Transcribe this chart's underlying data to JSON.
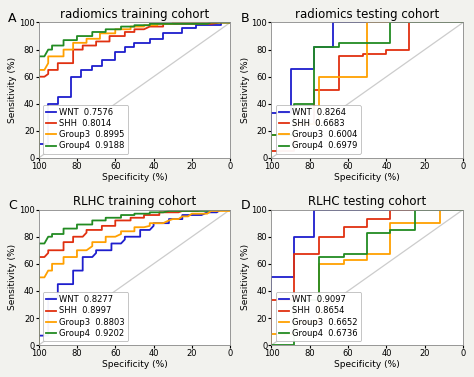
{
  "panels": [
    {
      "label": "A",
      "title": "radiomics training cohort",
      "curves": {
        "WNT": {
          "color": "#1E1ECD",
          "auc": "0.7576",
          "x": [
            100,
            100,
            97,
            95,
            95,
            90,
            90,
            85,
            83,
            83,
            78,
            78,
            72,
            72,
            67,
            67,
            63,
            60,
            60,
            55,
            55,
            50,
            50,
            45,
            42,
            42,
            37,
            35,
            35,
            28,
            25,
            25,
            20,
            18,
            18,
            12,
            10,
            5,
            5,
            2,
            0
          ],
          "y": [
            0,
            10,
            10,
            10,
            40,
            40,
            45,
            45,
            45,
            60,
            60,
            65,
            65,
            68,
            68,
            72,
            72,
            72,
            78,
            78,
            82,
            82,
            85,
            85,
            85,
            88,
            88,
            88,
            92,
            92,
            92,
            96,
            96,
            96,
            98,
            98,
            98,
            98,
            100,
            100,
            100
          ]
        },
        "SHH": {
          "color": "#E03010",
          "auc": "0.8014",
          "x": [
            100,
            100,
            97,
            95,
            95,
            90,
            90,
            85,
            82,
            82,
            77,
            77,
            72,
            70,
            70,
            65,
            63,
            63,
            58,
            55,
            55,
            50,
            50,
            45,
            42,
            42,
            37,
            35,
            35,
            28,
            25,
            25,
            20,
            15,
            12,
            10,
            5,
            2,
            2,
            0
          ],
          "y": [
            0,
            60,
            60,
            62,
            65,
            65,
            70,
            70,
            70,
            80,
            80,
            83,
            83,
            83,
            86,
            86,
            86,
            90,
            90,
            90,
            93,
            93,
            95,
            95,
            97,
            97,
            97,
            97,
            99,
            99,
            99,
            99,
            99,
            99,
            99,
            99,
            100,
            100,
            100,
            100
          ]
        },
        "Group3": {
          "color": "#FFA000",
          "auc": "0.8995",
          "x": [
            100,
            100,
            97,
            95,
            95,
            90,
            87,
            87,
            82,
            82,
            77,
            75,
            75,
            70,
            68,
            68,
            63,
            60,
            60,
            55,
            52,
            52,
            47,
            45,
            45,
            40,
            38,
            38,
            32,
            30,
            30,
            25,
            22,
            20,
            18,
            15,
            12,
            10,
            7,
            5,
            3,
            0
          ],
          "y": [
            0,
            65,
            65,
            70,
            75,
            75,
            75,
            80,
            80,
            85,
            85,
            85,
            88,
            88,
            88,
            92,
            92,
            92,
            95,
            95,
            95,
            97,
            97,
            97,
            98,
            98,
            98,
            99,
            99,
            99,
            100,
            100,
            100,
            100,
            100,
            100,
            100,
            100,
            100,
            100,
            100,
            100
          ]
        },
        "Group4": {
          "color": "#228B22",
          "auc": "0.9188",
          "x": [
            100,
            100,
            97,
            95,
            93,
            93,
            88,
            87,
            87,
            82,
            80,
            80,
            75,
            72,
            72,
            67,
            65,
            65,
            60,
            57,
            57,
            52,
            50,
            50,
            45,
            42,
            42,
            37,
            35,
            32,
            30,
            27,
            25,
            22,
            20,
            17,
            15,
            12,
            10,
            7,
            5,
            3,
            0
          ],
          "y": [
            0,
            75,
            75,
            80,
            80,
            83,
            83,
            83,
            87,
            87,
            87,
            90,
            90,
            90,
            93,
            93,
            93,
            95,
            95,
            95,
            97,
            97,
            97,
            98,
            98,
            98,
            99,
            99,
            99,
            99,
            99,
            99,
            99,
            99,
            99,
            99,
            99,
            99,
            100,
            100,
            100,
            100,
            100
          ]
        }
      }
    },
    {
      "label": "B",
      "title": "radiomics testing cohort",
      "curves": {
        "WNT": {
          "color": "#1E1ECD",
          "auc": "0.8264",
          "x": [
            100,
            100,
            90,
            90,
            78,
            78,
            68,
            68,
            42,
            42,
            20,
            20,
            0
          ],
          "y": [
            0,
            33,
            33,
            66,
            66,
            82,
            82,
            100,
            100,
            100,
            100,
            100,
            100
          ]
        },
        "SHH": {
          "color": "#E03010",
          "auc": "0.6683",
          "x": [
            100,
            100,
            88,
            88,
            78,
            78,
            65,
            65,
            52,
            52,
            40,
            40,
            28,
            28,
            0
          ],
          "y": [
            0,
            5,
            5,
            25,
            25,
            50,
            50,
            75,
            75,
            77,
            77,
            80,
            80,
            100,
            100
          ]
        },
        "Group3": {
          "color": "#FFA000",
          "auc": "0.6004",
          "x": [
            100,
            100,
            88,
            88,
            75,
            75,
            62,
            62,
            50,
            50,
            38,
            38,
            0
          ],
          "y": [
            0,
            17,
            17,
            25,
            25,
            60,
            60,
            60,
            60,
            100,
            100,
            100,
            100
          ]
        },
        "Group4": {
          "color": "#228B22",
          "auc": "0.6979",
          "x": [
            100,
            100,
            88,
            88,
            78,
            78,
            65,
            65,
            52,
            52,
            38,
            38,
            25,
            25,
            0
          ],
          "y": [
            0,
            17,
            17,
            40,
            40,
            82,
            82,
            85,
            85,
            85,
            85,
            100,
            100,
            100,
            100
          ]
        }
      }
    },
    {
      "label": "C",
      "title": "RLHC training cohort",
      "curves": {
        "WNT": {
          "color": "#1E1ECD",
          "auc": "0.8277",
          "x": [
            100,
            100,
            97,
            95,
            95,
            90,
            90,
            85,
            82,
            82,
            77,
            77,
            72,
            70,
            70,
            65,
            62,
            62,
            57,
            55,
            55,
            50,
            47,
            47,
            42,
            40,
            40,
            35,
            32,
            32,
            27,
            25,
            25,
            20,
            17,
            15,
            12,
            10,
            7,
            5,
            3,
            0
          ],
          "y": [
            0,
            7,
            7,
            7,
            35,
            35,
            45,
            45,
            45,
            55,
            55,
            65,
            65,
            68,
            70,
            70,
            70,
            75,
            75,
            78,
            80,
            80,
            80,
            85,
            85,
            88,
            90,
            90,
            90,
            93,
            93,
            93,
            96,
            96,
            96,
            96,
            98,
            98,
            98,
            100,
            100,
            100
          ]
        },
        "SHH": {
          "color": "#E03010",
          "auc": "0.8997",
          "x": [
            100,
            100,
            97,
            95,
            95,
            90,
            87,
            87,
            82,
            82,
            77,
            75,
            75,
            70,
            67,
            67,
            62,
            60,
            60,
            55,
            52,
            52,
            47,
            45,
            45,
            40,
            37,
            37,
            32,
            30,
            27,
            25,
            22,
            20,
            17,
            15,
            12,
            10,
            7,
            5,
            3,
            0
          ],
          "y": [
            0,
            65,
            65,
            68,
            70,
            70,
            70,
            76,
            76,
            80,
            80,
            83,
            85,
            85,
            85,
            88,
            88,
            88,
            92,
            92,
            92,
            94,
            94,
            94,
            96,
            96,
            96,
            98,
            98,
            98,
            98,
            99,
            99,
            99,
            99,
            100,
            100,
            100,
            100,
            100,
            100,
            100
          ]
        },
        "Group3": {
          "color": "#FFA000",
          "auc": "0.8803",
          "x": [
            100,
            100,
            97,
            95,
            93,
            93,
            88,
            87,
            87,
            82,
            80,
            80,
            75,
            72,
            72,
            67,
            65,
            65,
            60,
            57,
            57,
            52,
            50,
            50,
            45,
            42,
            42,
            37,
            35,
            32,
            30,
            27,
            25,
            22,
            20,
            17,
            15,
            12,
            10,
            7,
            5,
            3,
            0
          ],
          "y": [
            0,
            50,
            50,
            55,
            55,
            60,
            60,
            60,
            65,
            65,
            65,
            70,
            70,
            73,
            76,
            76,
            76,
            80,
            80,
            82,
            84,
            84,
            84,
            87,
            87,
            88,
            90,
            90,
            90,
            92,
            93,
            93,
            95,
            95,
            97,
            97,
            97,
            97,
            99,
            99,
            99,
            99,
            99
          ]
        },
        "Group4": {
          "color": "#228B22",
          "auc": "0.9202",
          "x": [
            100,
            100,
            97,
            95,
            93,
            93,
            88,
            87,
            87,
            82,
            80,
            80,
            75,
            72,
            72,
            67,
            65,
            65,
            60,
            57,
            57,
            52,
            50,
            50,
            45,
            42,
            42,
            37,
            35,
            32,
            30,
            27,
            25,
            22,
            20,
            17,
            15,
            12,
            10,
            7,
            5,
            3,
            0
          ],
          "y": [
            0,
            75,
            75,
            80,
            80,
            82,
            82,
            82,
            86,
            86,
            86,
            89,
            89,
            89,
            92,
            92,
            92,
            94,
            94,
            94,
            96,
            96,
            96,
            97,
            97,
            97,
            98,
            98,
            98,
            99,
            99,
            99,
            99,
            99,
            99,
            99,
            99,
            99,
            100,
            100,
            100,
            100,
            100
          ]
        }
      }
    },
    {
      "label": "D",
      "title": "RLHC testing cohort",
      "curves": {
        "WNT": {
          "color": "#1E1ECD",
          "auc": "0.9097",
          "x": [
            100,
            100,
            88,
            88,
            78,
            78,
            65,
            65,
            52,
            52,
            40,
            40,
            0
          ],
          "y": [
            0,
            50,
            50,
            80,
            80,
            100,
            100,
            100,
            100,
            100,
            100,
            100,
            100
          ]
        },
        "SHH": {
          "color": "#E03010",
          "auc": "0.8654",
          "x": [
            100,
            100,
            88,
            88,
            75,
            75,
            62,
            62,
            50,
            50,
            38,
            38,
            25,
            25,
            12,
            12,
            0
          ],
          "y": [
            0,
            33,
            33,
            67,
            67,
            80,
            80,
            87,
            87,
            93,
            93,
            100,
            100,
            100,
            100,
            100,
            100
          ]
        },
        "Group3": {
          "color": "#FFA000",
          "auc": "0.6652",
          "x": [
            100,
            100,
            88,
            88,
            75,
            75,
            62,
            62,
            50,
            50,
            38,
            38,
            25,
            25,
            12,
            12,
            0
          ],
          "y": [
            0,
            8,
            8,
            17,
            17,
            60,
            60,
            63,
            63,
            67,
            67,
            90,
            90,
            90,
            90,
            100,
            100
          ]
        },
        "Group4": {
          "color": "#228B22",
          "auc": "0.6736",
          "x": [
            100,
            100,
            88,
            88,
            75,
            75,
            62,
            62,
            50,
            50,
            38,
            38,
            25,
            25,
            12,
            12,
            0
          ],
          "y": [
            0,
            0,
            0,
            33,
            33,
            65,
            65,
            67,
            67,
            83,
            83,
            85,
            85,
            100,
            100,
            100,
            100
          ]
        }
      }
    }
  ],
  "xlabel": "Specificity (%)",
  "ylabel": "Sensitivity (%)",
  "bg_color": "#f2f2ee",
  "line_width": 1.3,
  "legend_fontsize": 6.0,
  "axis_fontsize": 6.5,
  "title_fontsize": 8.5,
  "label_fontsize": 9
}
